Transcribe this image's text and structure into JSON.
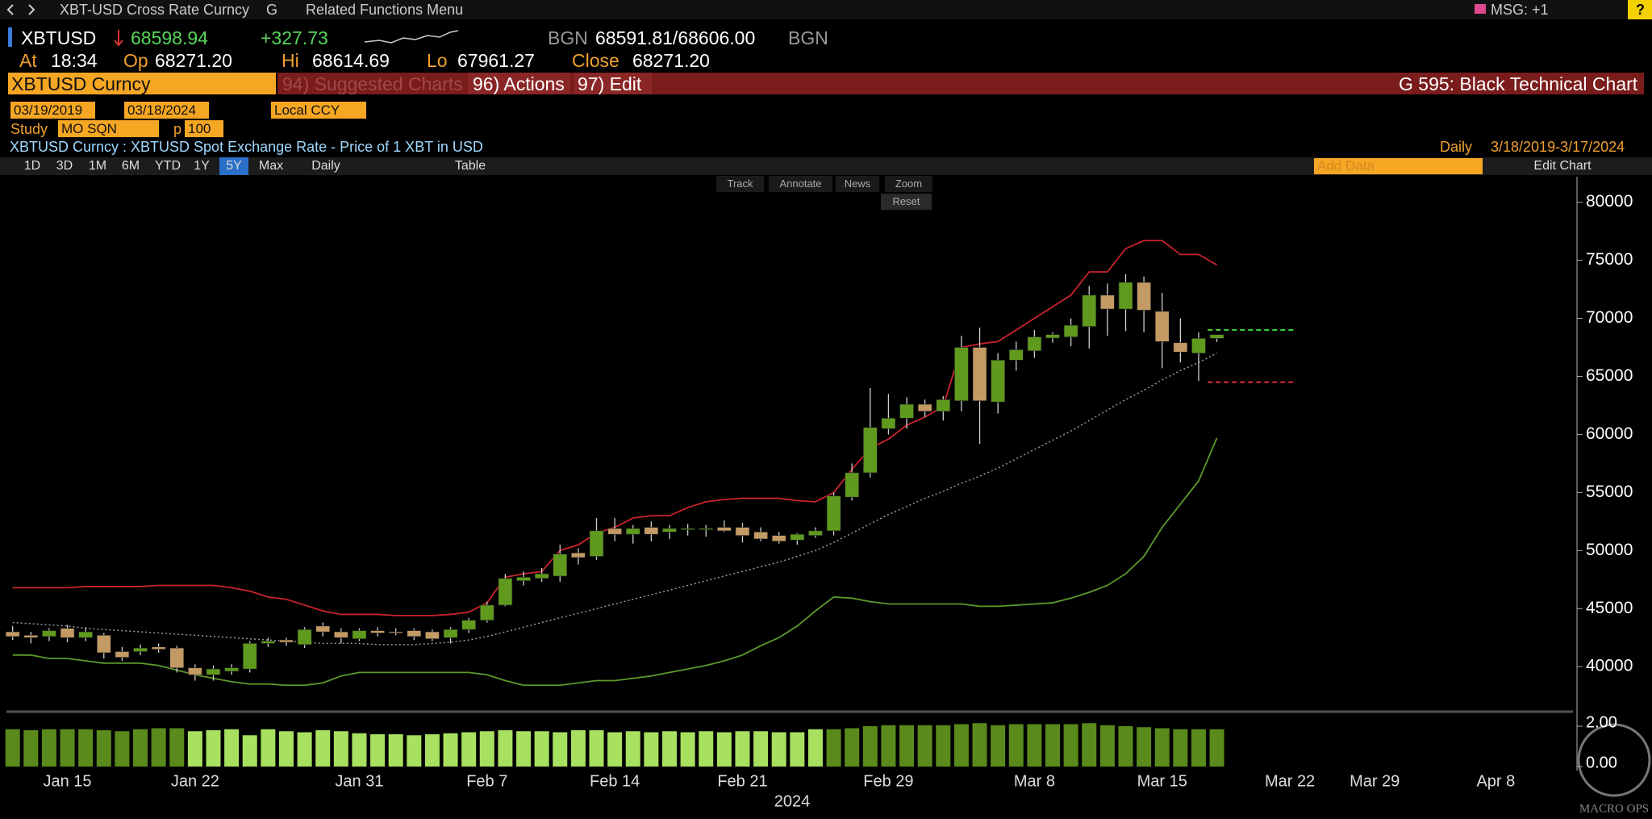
{
  "ui": {
    "nav": {
      "security": "XBT-USD Cross Rate Curncy",
      "menu_g": "G",
      "related": "Related Functions Menu",
      "msg": "MSG: +1",
      "help": "?"
    },
    "quote": {
      "ticker": "XBTUSD",
      "last": "68598.94",
      "change": "+327.73",
      "source1": "BGN",
      "bid_ask": "68591.81/68606.00",
      "source2": "BGN",
      "at_label": "At",
      "time": "18:34",
      "open_label": "Op",
      "open": "68271.20",
      "high_label": "Hi",
      "high": "68614.69",
      "low_label": "Lo",
      "low": "67961.27",
      "close_label": "Close",
      "close": "68271.20"
    },
    "toolbar": {
      "security": "XBTUSD Curncy",
      "suggested": "94) Suggested Charts",
      "actions": "96) Actions",
      "edit": "97) Edit",
      "chart_name": "G 595: Black Technical Chart"
    },
    "range": {
      "start": "03/19/2019",
      "end": "03/18/2024",
      "currency": "Local CCY"
    },
    "study": {
      "label": "Study",
      "name": "MO SQN",
      "param_label": "p",
      "param": "100"
    },
    "description": "XBTUSD Curncy : XBTUSD Spot Exchange Rate - Price of 1 XBT in USD",
    "frequency": "Daily",
    "period": "3/18/2019-3/17/2024",
    "periods": [
      "1D",
      "3D",
      "1M",
      "6M",
      "YTD",
      "1Y",
      "5Y",
      "Max"
    ],
    "selected_period": "5Y",
    "interval": "Daily",
    "table": "Table",
    "add_data": "Add Data",
    "edit_chart": "Edit Chart",
    "chart_tools": [
      "Track",
      "Annotate",
      "News",
      "Zoom"
    ],
    "reset": "Reset",
    "watermark": "MACRO OPS"
  },
  "chart_data": {
    "type": "candlestick",
    "categories": [
      null,
      null,
      null,
      "Jan 15",
      null,
      null,
      null,
      null,
      null,
      null,
      "Jan 22",
      null,
      null,
      null,
      null,
      null,
      null,
      null,
      null,
      "Jan 31",
      null,
      null,
      null,
      null,
      null,
      null,
      "Feb 7",
      null,
      null,
      null,
      null,
      null,
      null,
      "Feb 14",
      null,
      null,
      null,
      null,
      null,
      null,
      "Feb 21",
      null,
      null,
      null,
      null,
      null,
      null,
      null,
      "Feb 29",
      null,
      null,
      null,
      null,
      null,
      null,
      null,
      "Mar 8",
      null,
      null,
      null,
      null,
      null,
      null,
      "Mar 15",
      null,
      null,
      null,
      null,
      null,
      null,
      "Mar 22",
      null,
      null,
      null,
      null,
      null,
      null,
      "Mar 29",
      null,
      null,
      null,
      null,
      null,
      null,
      null,
      null,
      null,
      "Apr 8"
    ],
    "open": [
      43000,
      42700,
      42600,
      43300,
      42500,
      42700,
      41300,
      41300,
      41700,
      41600,
      39900,
      39300,
      39600,
      39800,
      42000,
      42300,
      41900,
      43500,
      43000,
      42400,
      43100,
      43000,
      43100,
      43000,
      42500,
      43200,
      44000,
      45300,
      47400,
      47600,
      47800,
      49800,
      49500,
      51900,
      51400,
      52000,
      51600,
      51800,
      51800,
      52000,
      52000,
      51600,
      51300,
      50900,
      51300,
      51700,
      54600,
      56700,
      60500,
      61400,
      62600,
      62000,
      62900,
      67500,
      62800,
      66400,
      67200,
      68300,
      68400,
      69300,
      72000,
      70800,
      73100,
      70600,
      67900,
      67000,
      68271.2,
      null,
      null,
      null,
      null,
      null,
      null,
      null,
      null,
      null,
      null,
      null,
      null,
      null,
      null,
      null,
      null,
      null,
      null,
      null,
      null,
      null
    ],
    "high": [
      43500,
      43000,
      43300,
      43600,
      43400,
      42900,
      41700,
      41900,
      42000,
      41800,
      40200,
      40100,
      40200,
      42200,
      42500,
      42500,
      43400,
      43800,
      43300,
      43300,
      43400,
      43300,
      43300,
      43200,
      43400,
      44200,
      45600,
      48000,
      48200,
      48500,
      50500,
      50200,
      52800,
      52800,
      52200,
      52500,
      52200,
      52300,
      52200,
      52600,
      52400,
      52000,
      51600,
      51500,
      52000,
      55000,
      57500,
      64000,
      63500,
      63200,
      63000,
      63300,
      68500,
      69200,
      67000,
      68000,
      69000,
      68800,
      70000,
      72800,
      73000,
      73800,
      73600,
      72200,
      70000,
      68800,
      68614.69,
      null,
      null,
      null,
      null,
      null,
      null,
      null,
      null,
      null,
      null,
      null,
      null,
      null,
      null,
      null,
      null,
      null,
      null,
      null,
      null,
      null
    ],
    "low": [
      42300,
      42000,
      42200,
      42100,
      42200,
      40700,
      40500,
      41000,
      41200,
      39500,
      38800,
      38800,
      39300,
      39500,
      41700,
      41800,
      41600,
      42600,
      42000,
      42200,
      42600,
      42700,
      42300,
      42200,
      42000,
      42900,
      43800,
      45200,
      47000,
      47300,
      47300,
      48800,
      49200,
      50800,
      50600,
      50800,
      51000,
      51300,
      51200,
      51600,
      50700,
      50800,
      50600,
      50500,
      51100,
      51300,
      54300,
      56300,
      60000,
      60500,
      61500,
      61200,
      62000,
      59200,
      61800,
      65500,
      66600,
      67900,
      67600,
      67400,
      68500,
      68900,
      68800,
      65700,
      66200,
      64600,
      67961.27,
      null,
      null,
      null,
      null,
      null,
      null,
      null,
      null,
      null,
      null,
      null,
      null,
      null,
      null,
      null,
      null,
      null,
      null,
      null,
      null,
      null
    ],
    "close": [
      42600,
      42500,
      43100,
      42500,
      43000,
      41200,
      40800,
      41600,
      41500,
      39900,
      39300,
      39800,
      39900,
      42000,
      42200,
      42100,
      43200,
      43000,
      42500,
      43100,
      42900,
      42900,
      42600,
      42400,
      43200,
      44000,
      45300,
      47600,
      47700,
      48000,
      49700,
      49400,
      51700,
      51400,
      51900,
      51400,
      51900,
      51900,
      51900,
      51700,
      51300,
      51000,
      50800,
      51400,
      51700,
      54700,
      56700,
      60600,
      61400,
      62600,
      62000,
      63000,
      67500,
      62900,
      66400,
      67300,
      68400,
      68600,
      69400,
      72000,
      70800,
      73100,
      70700,
      68000,
      67100,
      68271.2,
      68598.94,
      null,
      null,
      null,
      null,
      null,
      null,
      null,
      null,
      null,
      null,
      null,
      null,
      null,
      null,
      null,
      null,
      null,
      null,
      null,
      null,
      null
    ],
    "up_color": "#5f9a1e",
    "down_color": "#c49a64",
    "wick_color": "#cfcfcf",
    "upper_band": {
      "color": "#c8242c",
      "values": [
        46800,
        46800,
        46800,
        46800,
        46900,
        46900,
        46900,
        46900,
        47000,
        47000,
        47000,
        47000,
        46800,
        46500,
        46000,
        45800,
        45300,
        44800,
        44500,
        44500,
        44500,
        44400,
        44400,
        44400,
        44500,
        44700,
        45500,
        47700,
        48000,
        48200,
        50000,
        50500,
        51500,
        52000,
        52800,
        53000,
        53000,
        53700,
        54200,
        54400,
        54500,
        54500,
        54500,
        54300,
        54200,
        55000,
        57000,
        58800,
        59600,
        60800,
        61500,
        62400,
        67500,
        67800,
        68000,
        69000,
        70000,
        71000,
        72000,
        74000,
        74000,
        76000,
        76700,
        76700,
        75500,
        75500,
        74600,
        null,
        null,
        null,
        null,
        null,
        null,
        null,
        null,
        null,
        null,
        null,
        null,
        null,
        null,
        null,
        null,
        null,
        null,
        null,
        null,
        null
      ]
    },
    "lower_band": {
      "color": "#5c9a2a",
      "values": [
        41000,
        41000,
        40700,
        40700,
        40500,
        40300,
        40300,
        40300,
        40100,
        39700,
        39300,
        39000,
        38700,
        38500,
        38500,
        38400,
        38400,
        38600,
        39200,
        39500,
        39500,
        39500,
        39500,
        39500,
        39500,
        39500,
        39300,
        38800,
        38400,
        38400,
        38400,
        38600,
        38800,
        38800,
        39000,
        39200,
        39500,
        39800,
        40100,
        40500,
        41000,
        41800,
        42500,
        43500,
        44800,
        46000,
        45900,
        45600,
        45400,
        45400,
        45400,
        45400,
        45400,
        45200,
        45200,
        45300,
        45400,
        45500,
        45900,
        46400,
        47000,
        48000,
        49500,
        52000,
        54000,
        56000,
        59700,
        null,
        null,
        null,
        null,
        null,
        null,
        null,
        null,
        null,
        null,
        null,
        null,
        null,
        null,
        null,
        null,
        null,
        null,
        null,
        null,
        null
      ]
    },
    "moving_average": {
      "color": "#9a9a9a",
      "values": [
        43800,
        43700,
        43600,
        43500,
        43300,
        43200,
        43100,
        43000,
        42900,
        42800,
        42700,
        42600,
        42500,
        42400,
        42300,
        42200,
        42100,
        42000,
        42000,
        42000,
        41900,
        41900,
        41900,
        42000,
        42100,
        42300,
        42600,
        43000,
        43400,
        43800,
        44200,
        44600,
        45000,
        45400,
        45800,
        46200,
        46600,
        47000,
        47400,
        47800,
        48200,
        48600,
        49000,
        49500,
        50000,
        50700,
        51500,
        52300,
        53100,
        53800,
        54500,
        55100,
        55800,
        56400,
        57100,
        57900,
        58700,
        59500,
        60300,
        61200,
        62100,
        63000,
        63800,
        64700,
        65500,
        66200,
        67000,
        null,
        null,
        null,
        null,
        null,
        null,
        null,
        null,
        null,
        null,
        null,
        null,
        null,
        null,
        null,
        null,
        null,
        null,
        null,
        null,
        null
      ]
    },
    "levels": [
      {
        "value": 69000,
        "color": "#3ddc3d"
      },
      {
        "value": 64500,
        "color": "#e0303a"
      }
    ],
    "ylim": [
      36400,
      82200
    ],
    "yticks": [
      40000,
      45000,
      50000,
      55000,
      60000,
      65000,
      70000,
      75000,
      80000
    ],
    "volume": {
      "values": [
        1.85,
        1.8,
        1.85,
        1.85,
        1.85,
        1.8,
        1.75,
        1.85,
        1.9,
        1.9,
        1.75,
        1.8,
        1.85,
        1.55,
        1.85,
        1.75,
        1.7,
        1.8,
        1.75,
        1.65,
        1.6,
        1.6,
        1.55,
        1.6,
        1.65,
        1.7,
        1.75,
        1.8,
        1.75,
        1.75,
        1.7,
        1.8,
        1.8,
        1.7,
        1.75,
        1.7,
        1.75,
        1.7,
        1.75,
        1.7,
        1.75,
        1.75,
        1.7,
        1.7,
        1.85,
        1.85,
        1.9,
        2.0,
        2.05,
        2.05,
        2.05,
        2.05,
        2.1,
        2.15,
        2.05,
        2.1,
        2.1,
        2.1,
        2.1,
        2.15,
        2.05,
        2.0,
        1.95,
        1.9,
        1.85,
        1.85,
        1.85,
        null,
        null,
        null,
        null,
        null,
        null,
        null,
        null,
        null,
        null,
        null,
        null,
        null,
        null,
        null,
        null,
        null,
        null,
        null,
        null,
        null
      ],
      "colors": [
        "#5a8a1c",
        "#5a8a1c",
        "#5a8a1c",
        "#5a8a1c",
        "#5a8a1c",
        "#5a8a1c",
        "#5a8a1c",
        "#5a8a1c",
        "#5a8a1c",
        "#5a8a1c",
        "#a8e060",
        "#a8e060",
        "#a8e060",
        "#a8e060",
        "#a8e060",
        "#a8e060",
        "#a8e060",
        "#a8e060",
        "#a8e060",
        "#a8e060",
        "#a8e060",
        "#a8e060",
        "#a8e060",
        "#a8e060",
        "#a8e060",
        "#a8e060",
        "#a8e060",
        "#a8e060",
        "#a8e060",
        "#a8e060",
        "#a8e060",
        "#a8e060",
        "#a8e060",
        "#a8e060",
        "#a8e060",
        "#a8e060",
        "#a8e060",
        "#a8e060",
        "#a8e060",
        "#a8e060",
        "#a8e060",
        "#a8e060",
        "#a8e060",
        "#a8e060",
        "#a8e060",
        "#5a8a1c",
        "#5a8a1c",
        "#5a8a1c",
        "#5a8a1c",
        "#5a8a1c",
        "#5a8a1c",
        "#5a8a1c",
        "#5a8a1c",
        "#5a8a1c",
        "#5a8a1c",
        "#5a8a1c",
        "#5a8a1c",
        "#5a8a1c",
        "#5a8a1c",
        "#5a8a1c",
        "#5a8a1c",
        "#5a8a1c",
        "#5a8a1c",
        "#5a8a1c",
        "#5a8a1c",
        "#5a8a1c",
        "#5a8a1c",
        null,
        null,
        null,
        null,
        null,
        null,
        null,
        null,
        null,
        null,
        null,
        null,
        null,
        null,
        null,
        null,
        null,
        null,
        null,
        null,
        null
      ],
      "ylim": [
        0,
        2.2
      ],
      "yticks": [
        {
          "value": 2,
          "label": "2.00"
        },
        {
          "value": 0,
          "label": "0.00"
        }
      ]
    },
    "year_label": "2024"
  }
}
